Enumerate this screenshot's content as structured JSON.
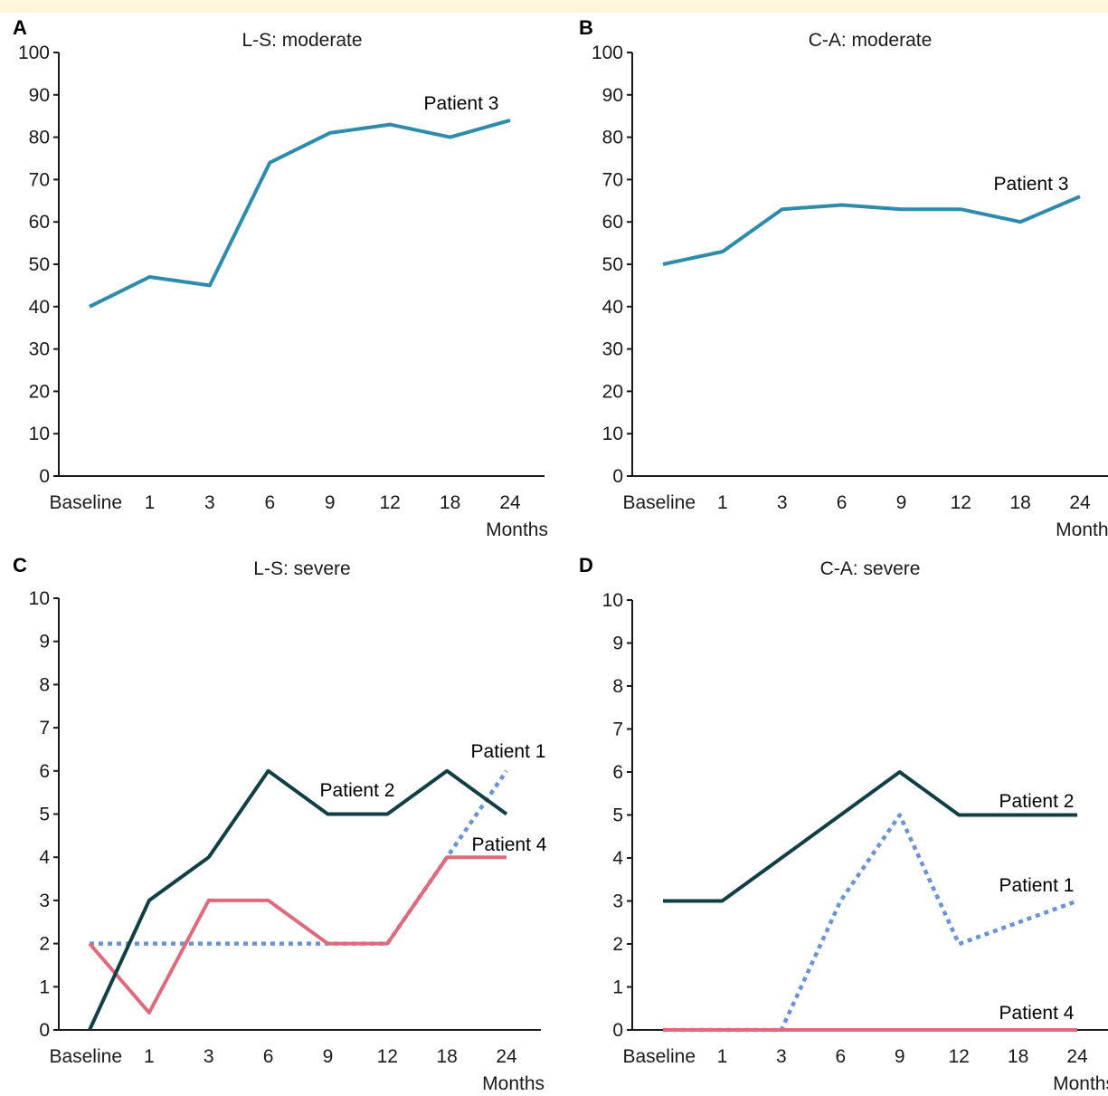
{
  "colors": {
    "teal": "#2e8bab",
    "dark": "#123f46",
    "pink": "#e06a7d",
    "dotted": "#6a93d4"
  },
  "chart_data": [
    {
      "panel": "A",
      "type": "line",
      "title": "L-S: moderate",
      "xlabel": "Months",
      "ylim": [
        0,
        100
      ],
      "yticks": [
        0,
        10,
        20,
        30,
        40,
        50,
        60,
        70,
        80,
        90,
        100
      ],
      "categories": [
        "Baseline",
        "1",
        "3",
        "6",
        "9",
        "12",
        "18",
        "24"
      ],
      "series": [
        {
          "name": "Patient 3",
          "style": "solid",
          "color": "teal",
          "values": [
            40,
            47,
            45,
            74,
            81,
            83,
            80,
            84
          ]
        }
      ]
    },
    {
      "panel": "B",
      "type": "line",
      "title": "C-A: moderate",
      "xlabel": "Months",
      "ylim": [
        0,
        100
      ],
      "yticks": [
        0,
        10,
        20,
        30,
        40,
        50,
        60,
        70,
        80,
        90,
        100
      ],
      "categories": [
        "Baseline",
        "1",
        "3",
        "6",
        "9",
        "12",
        "18",
        "24"
      ],
      "series": [
        {
          "name": "Patient 3",
          "style": "solid",
          "color": "teal",
          "values": [
            50,
            53,
            63,
            64,
            63,
            63,
            60,
            66
          ]
        }
      ]
    },
    {
      "panel": "C",
      "type": "line",
      "title": "L-S: severe",
      "xlabel": "Months",
      "ylim": [
        0,
        10
      ],
      "yticks": [
        0,
        1,
        2,
        3,
        4,
        5,
        6,
        7,
        8,
        9,
        10
      ],
      "categories": [
        "Baseline",
        "1",
        "3",
        "6",
        "9",
        "12",
        "18",
        "24"
      ],
      "series": [
        {
          "name": "Patient 1",
          "style": "dotted",
          "color": "dotted",
          "values": [
            2,
            2,
            2,
            2,
            2,
            2,
            4,
            6
          ]
        },
        {
          "name": "Patient 4",
          "style": "solid",
          "color": "pink",
          "values": [
            2,
            0.4,
            3,
            3,
            2,
            2,
            4,
            4
          ]
        },
        {
          "name": "Patient 2",
          "style": "solid",
          "color": "dark",
          "values": [
            0,
            3,
            4,
            6,
            5,
            5,
            6,
            5
          ]
        }
      ]
    },
    {
      "panel": "D",
      "type": "line",
      "title": "C-A: severe",
      "xlabel": "Months",
      "ylim": [
        0,
        10
      ],
      "yticks": [
        0,
        1,
        2,
        3,
        4,
        5,
        6,
        7,
        8,
        9,
        10
      ],
      "categories": [
        "Baseline",
        "1",
        "3",
        "6",
        "9",
        "12",
        "18",
        "24"
      ],
      "series": [
        {
          "name": "Patient 1",
          "style": "dotted",
          "color": "dotted",
          "values": [
            0,
            0,
            0,
            3,
            5,
            2,
            2.5,
            3
          ]
        },
        {
          "name": "Patient 4",
          "style": "solid",
          "color": "pink",
          "values": [
            0,
            0,
            0,
            0,
            0,
            0,
            0,
            0
          ]
        },
        {
          "name": "Patient 2",
          "style": "solid",
          "color": "dark",
          "values": [
            3,
            3,
            4,
            5,
            6,
            5,
            5,
            5
          ]
        }
      ]
    }
  ]
}
